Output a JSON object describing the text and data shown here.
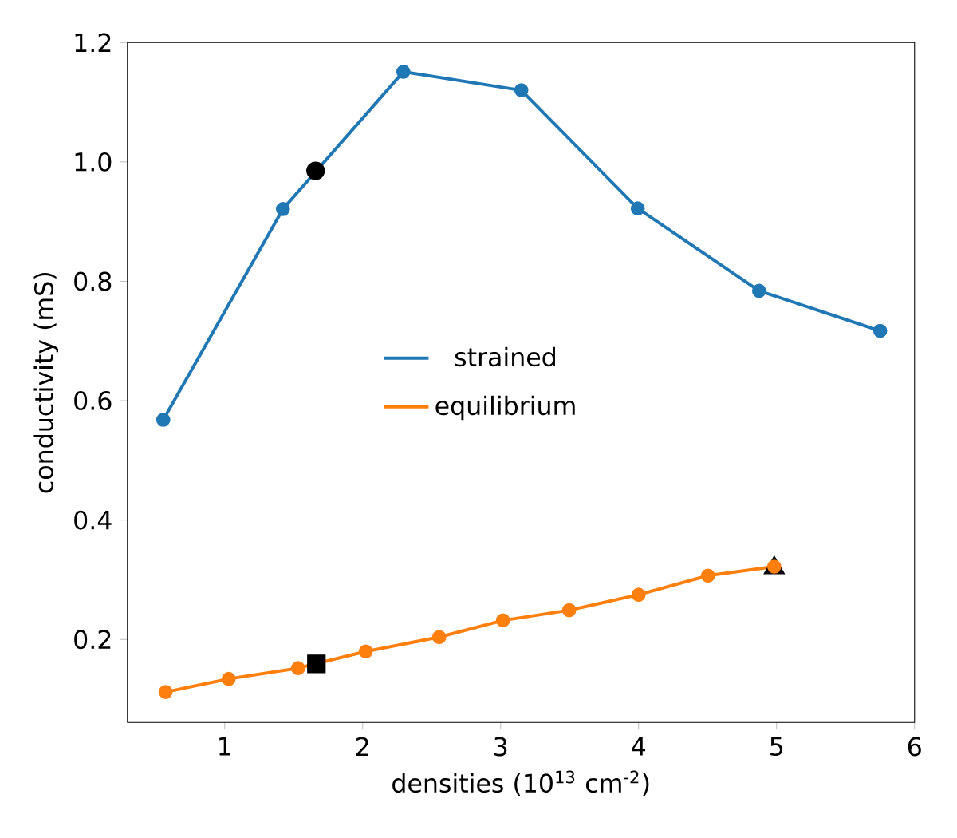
{
  "chart_data": {
    "type": "line",
    "xlabel": "densities (10$^{13}$ cm$^{-2}$)",
    "ylabel": "conductivity (mS)",
    "xlim": [
      0.295,
      6.0
    ],
    "ylim": [
      0.061,
      1.2
    ],
    "xticks": [
      1,
      2,
      3,
      4,
      5,
      6
    ],
    "yticks": [
      0.2,
      0.4,
      0.6,
      0.8,
      {
        "value": 1.0,
        "label": "1.0"
      },
      1.2
    ],
    "grid": false,
    "legend": "center",
    "marker": "circle",
    "line_style": "solid",
    "series": [
      {
        "name": "strained",
        "color": "#1f77b4",
        "x": [
          0.555,
          1.422,
          2.295,
          3.15,
          3.994,
          4.873,
          5.751
        ],
        "values": [
          0.568,
          0.921,
          1.151,
          1.12,
          0.922,
          0.784,
          0.717
        ]
      },
      {
        "name": "equilibrium",
        "color": "#ff7f0e",
        "x": [
          0.572,
          1.029,
          1.532,
          2.023,
          2.555,
          3.017,
          3.497,
          4.0,
          4.503,
          4.983
        ],
        "values": [
          0.112,
          0.134,
          0.152,
          0.18,
          0.204,
          0.232,
          0.249,
          0.275,
          0.307,
          0.322
        ]
      },
      {
        "type": "scatter",
        "marker": "circle",
        "color": "#000000",
        "x": [
          1.659
        ],
        "values": [
          0.985
        ]
      },
      {
        "type": "scatter",
        "marker": "square",
        "color": "#000000",
        "x": [
          1.665
        ],
        "values": [
          0.159
        ]
      },
      {
        "type": "scatter",
        "marker": "triangle",
        "color": "#000000",
        "x": [
          4.983
        ],
        "values": [
          0.32
        ]
      }
    ]
  }
}
